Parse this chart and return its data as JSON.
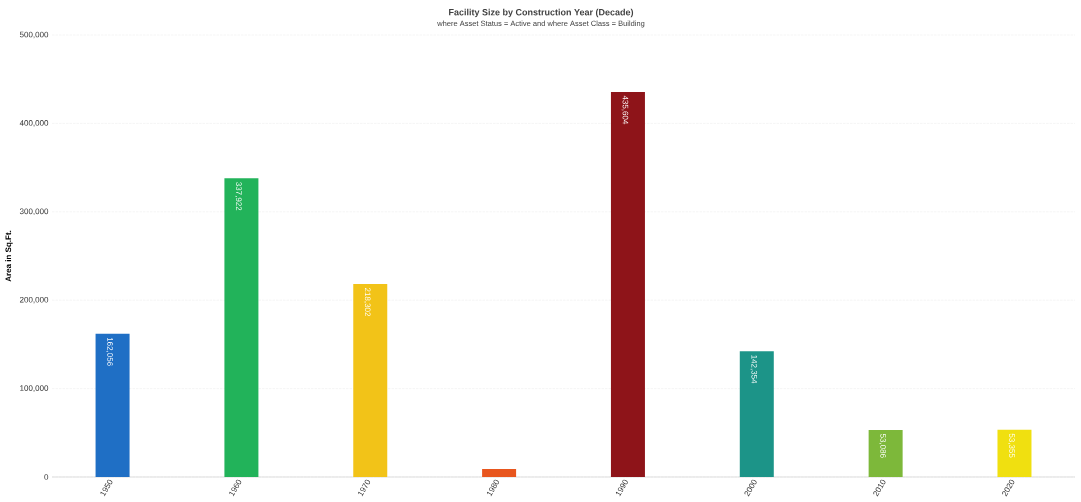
{
  "chart_data": {
    "type": "bar",
    "title": "Facility Size by Construction Year (Decade)",
    "subtitle": "where Asset Status = Active and where Asset Class = Building",
    "ylabel": "Area in Sq.Ft.",
    "categories": [
      "1950",
      "1960",
      "1970",
      "1980",
      "1990",
      "2000",
      "2010",
      "2020"
    ],
    "values": [
      162056,
      337922,
      218302,
      9000,
      435604,
      142354,
      53086,
      53355
    ],
    "value_labels": [
      "162,056",
      "337,922",
      "218,302",
      null,
      "435,604",
      "142,354",
      "53,086",
      "53,355"
    ],
    "colors": [
      "#1f6fc5",
      "#22b35a",
      "#f2c318",
      "#e8561e",
      "#8e1419",
      "#1c9488",
      "#7db83a",
      "#f0e010"
    ],
    "ylim": [
      0,
      500000
    ],
    "yticks": [
      {
        "value": 0,
        "label": "0"
      },
      {
        "value": 100000,
        "label": "100,000"
      },
      {
        "value": 200000,
        "label": "200,000"
      },
      {
        "value": 300000,
        "label": "300,000"
      },
      {
        "value": 400000,
        "label": "400,000"
      },
      {
        "value": 500000,
        "label": "500,000"
      }
    ],
    "grid": "y"
  }
}
